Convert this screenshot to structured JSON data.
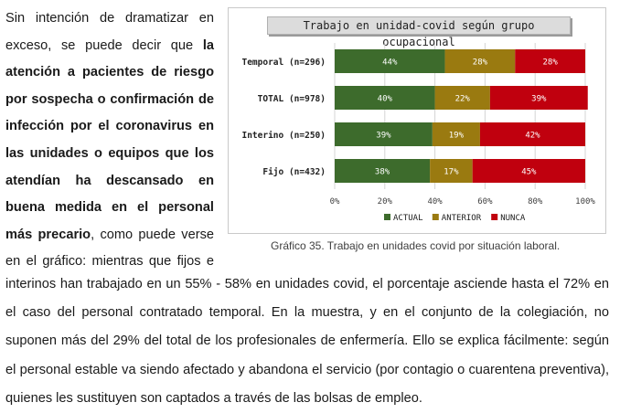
{
  "left_text": {
    "p1": "Sin intención de dramatizar en exceso, se puede decir que ",
    "p1_bold": "la atención a pacientes de riesgo por sospecha o confirmación de infección por el coronavirus en las unidades o equipos que los atendían ha descansado en buena medida en el personal más precario",
    "p1_end": ", como puede verse en el gráfico: mientras que fijos e"
  },
  "body_lines": [
    "interinos han trabajado en un 55% - 58% en unidades covid, el porcentaje asciende hasta el 72% en",
    "el caso del personal contratado temporal. En la muestra, y en el conjunto de la colegiación, no",
    "suponen más del 29% del total de los profesionales de enfermería. Ello se explica fácilmente: según",
    "el personal estable va siendo afectado y abandona el servicio (por contagio o cuarentena preventiva),",
    "quienes les sustituyen son captados a través de las bolsas de empleo."
  ],
  "caption": "Gráfico 35. Trabajo en unidades covid por situación laboral.",
  "chart_data": {
    "type": "bar",
    "orientation": "horizontal",
    "stacked": true,
    "title": "Trabajo en unidad-covid según grupo ocupacional",
    "categories": [
      "Temporal (n=296)",
      "TOTAL (n=978)",
      "Interino (n=250)",
      "Fijo (n=432)"
    ],
    "series": [
      {
        "name": "ACTUAL",
        "color": "#3d6b2c",
        "values": [
          44,
          40,
          39,
          38
        ]
      },
      {
        "name": "ANTERIOR",
        "color": "#9a7a10",
        "values": [
          28,
          22,
          19,
          17
        ]
      },
      {
        "name": "NUNCA",
        "color": "#c0000e",
        "values": [
          28,
          39,
          42,
          45
        ]
      }
    ],
    "value_suffix": "%",
    "xlim": [
      0,
      100
    ],
    "xticks": [
      "0%",
      "20%",
      "40%",
      "60%",
      "80%",
      "100%"
    ],
    "grid": true,
    "legend_position": "bottom"
  }
}
